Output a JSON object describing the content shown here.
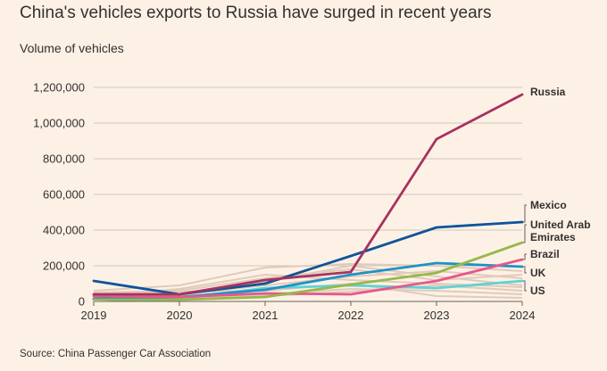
{
  "title": "China's vehicles exports to Russia have surged in recent years",
  "source": "Source: China Passenger Car Association",
  "chart_data": {
    "type": "line",
    "ylabel": "Volume of vehicles",
    "xlabel": "",
    "x": [
      "2019",
      "2020",
      "2021",
      "2022",
      "2023",
      "2024"
    ],
    "ylim": [
      0,
      1200000
    ],
    "yticks": [
      0,
      200000,
      400000,
      600000,
      800000,
      1000000,
      1200000
    ],
    "ytick_labels": [
      "0",
      "200,000",
      "400,000",
      "600,000",
      "800,000",
      "1,000,000",
      "1,200,000"
    ],
    "grid": true,
    "series": [
      {
        "name": "Russia",
        "color": "#a8325e",
        "values": [
          40000,
          40000,
          120000,
          165000,
          910000,
          1160000
        ]
      },
      {
        "name": "Mexico",
        "color": "#0f5499",
        "values": [
          115000,
          40000,
          100000,
          255000,
          415000,
          445000
        ]
      },
      {
        "name": "United Arab Emirates",
        "color": "#96b84a",
        "values": [
          10000,
          10000,
          25000,
          95000,
          160000,
          330000
        ]
      },
      {
        "name": "Brazil",
        "color": "#e5588a",
        "values": [
          30000,
          25000,
          45000,
          40000,
          115000,
          235000
        ]
      },
      {
        "name": "UK",
        "color": "#1e92c4",
        "values": [
          15000,
          25000,
          65000,
          150000,
          215000,
          195000
        ]
      },
      {
        "name": "US",
        "color": "#5fd2d6",
        "values": [
          10000,
          15000,
          75000,
          90000,
          75000,
          115000
        ]
      }
    ],
    "background_series": [
      [
        60000,
        90000,
        190000,
        210000,
        200000,
        170000
      ],
      [
        20000,
        35000,
        110000,
        200000,
        140000,
        90000
      ],
      [
        50000,
        60000,
        130000,
        180000,
        120000,
        150000
      ],
      [
        10000,
        20000,
        40000,
        70000,
        60000,
        40000
      ],
      [
        30000,
        70000,
        150000,
        120000,
        100000,
        80000
      ],
      [
        5000,
        15000,
        30000,
        55000,
        90000,
        60000
      ],
      [
        25000,
        40000,
        90000,
        140000,
        170000,
        130000
      ],
      [
        40000,
        55000,
        60000,
        100000,
        30000,
        20000
      ]
    ],
    "background_color": "#e0cbbb",
    "end_labels": [
      {
        "lines": [
          "Russia"
        ]
      },
      {
        "lines": [
          "Mexico"
        ]
      },
      {
        "lines": [
          "United Arab",
          "Emirates"
        ]
      },
      {
        "lines": [
          "Brazil"
        ]
      },
      {
        "lines": [
          "UK"
        ]
      },
      {
        "lines": [
          "US"
        ]
      }
    ]
  }
}
